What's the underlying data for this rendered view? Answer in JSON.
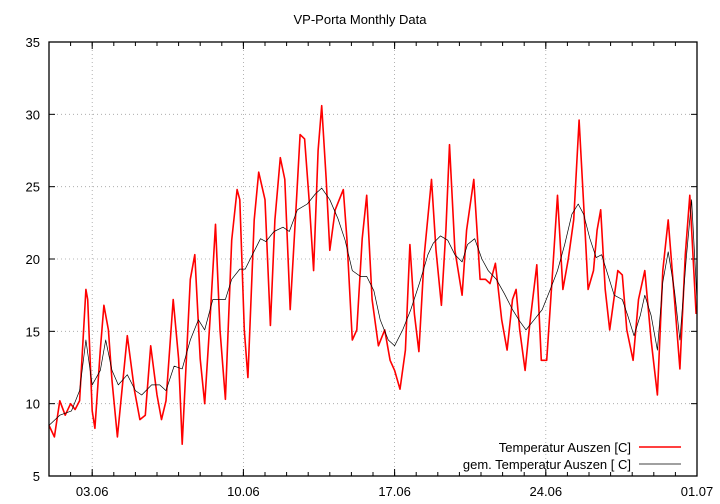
{
  "chart_data": {
    "type": "line",
    "title": "VP-Porta Monthly Data",
    "xlabel": "",
    "ylabel": "",
    "xlim": [
      "01.06 00:00",
      "01.07 00:00"
    ],
    "ylim": [
      5,
      35
    ],
    "x_ticks": [
      "03.06",
      "10.06",
      "17.06",
      "24.06",
      "01.07"
    ],
    "y_ticks": [
      5,
      10,
      15,
      20,
      25,
      30,
      35
    ],
    "grid": true,
    "legend_position": "bottom-right",
    "series": [
      {
        "name": "Temperatur Auszen [C]",
        "color": "#ff0000",
        "points": [
          [
            "01.06 00:00",
            8.5
          ],
          [
            "01.06 06:00",
            7.7
          ],
          [
            "01.06 12:00",
            10.2
          ],
          [
            "01.06 18:00",
            9.2
          ],
          [
            "02.06 00:00",
            10.0
          ],
          [
            "02.06 05:00",
            9.6
          ],
          [
            "02.06 10:00",
            10.2
          ],
          [
            "02.06 17:00",
            17.9
          ],
          [
            "02.06 19:00",
            17.2
          ],
          [
            "03.06 00:00",
            9.5
          ],
          [
            "03.06 03:00",
            8.3
          ],
          [
            "03.06 09:00",
            13.7
          ],
          [
            "03.06 13:00",
            16.8
          ],
          [
            "03.06 18:00",
            15.1
          ],
          [
            "03.06 22:00",
            11.6
          ],
          [
            "04.06 04:00",
            7.7
          ],
          [
            "04.06 15:00",
            14.7
          ],
          [
            "04.06 23:00",
            10.9
          ],
          [
            "05.06 05:00",
            8.9
          ],
          [
            "05.06 11:00",
            9.2
          ],
          [
            "05.06 17:00",
            14.0
          ],
          [
            "06.06 00:00",
            10.6
          ],
          [
            "06.06 05:00",
            8.9
          ],
          [
            "06.06 10:00",
            10.2
          ],
          [
            "06.06 18:00",
            17.2
          ],
          [
            "07.06 00:00",
            13.1
          ],
          [
            "07.06 04:00",
            7.2
          ],
          [
            "07.06 13:00",
            18.6
          ],
          [
            "07.06 18:00",
            20.3
          ],
          [
            "08.06 00:00",
            13.1
          ],
          [
            "08.06 05:00",
            10.0
          ],
          [
            "08.06 11:00",
            15.9
          ],
          [
            "08.06 17:00",
            22.4
          ],
          [
            "08.06 22:00",
            15.1
          ],
          [
            "09.06 04:00",
            10.3
          ],
          [
            "09.06 11:00",
            21.3
          ],
          [
            "09.06 17:00",
            24.8
          ],
          [
            "09.06 20:00",
            24.1
          ],
          [
            "10.06 01:00",
            15.1
          ],
          [
            "10.06 05:00",
            11.8
          ],
          [
            "10.06 12:00",
            22.7
          ],
          [
            "10.06 17:00",
            26.0
          ],
          [
            "11.06 00:00",
            24.1
          ],
          [
            "11.06 06:00",
            15.4
          ],
          [
            "11.06 11:00",
            22.7
          ],
          [
            "11.06 17:00",
            27.0
          ],
          [
            "11.06 22:00",
            25.5
          ],
          [
            "12.06 04:00",
            16.5
          ],
          [
            "12.06 11:00",
            24.1
          ],
          [
            "12.06 15:00",
            28.6
          ],
          [
            "12.06 20:00",
            28.3
          ],
          [
            "13.06 01:00",
            24.1
          ],
          [
            "13.06 06:00",
            19.2
          ],
          [
            "13.06 11:00",
            27.5
          ],
          [
            "13.06 15:00",
            30.6
          ],
          [
            "13.06 20:00",
            25.5
          ],
          [
            "14.06 00:00",
            20.6
          ],
          [
            "14.06 06:00",
            23.4
          ],
          [
            "14.06 15:00",
            24.8
          ],
          [
            "14.06 19:00",
            21.4
          ],
          [
            "15.06 01:00",
            14.4
          ],
          [
            "15.06 06:00",
            15.1
          ],
          [
            "15.06 12:00",
            21.4
          ],
          [
            "15.06 17:00",
            24.4
          ],
          [
            "15.06 23:00",
            17.2
          ],
          [
            "16.06 06:00",
            14.0
          ],
          [
            "16.06 13:00",
            15.1
          ],
          [
            "16.06 19:00",
            13.0
          ],
          [
            "17.06 00:00",
            12.3
          ],
          [
            "17.06 06:00",
            11.0
          ],
          [
            "17.06 12:00",
            13.7
          ],
          [
            "17.06 17:00",
            21.0
          ],
          [
            "17.06 22:00",
            16.2
          ],
          [
            "18.06 03:00",
            13.6
          ],
          [
            "18.06 09:00",
            20.3
          ],
          [
            "18.06 17:00",
            25.5
          ],
          [
            "18.06 22:00",
            20.6
          ],
          [
            "19.06 04:00",
            16.8
          ],
          [
            "19.06 09:00",
            22.0
          ],
          [
            "19.06 13:00",
            27.9
          ],
          [
            "19.06 19:00",
            20.6
          ],
          [
            "20.06 03:00",
            17.5
          ],
          [
            "20.06 08:00",
            22.0
          ],
          [
            "20.06 16:00",
            25.5
          ],
          [
            "20.06 23:00",
            18.6
          ],
          [
            "21.06 05:00",
            18.6
          ],
          [
            "21.06 10:00",
            18.3
          ],
          [
            "21.06 16:00",
            19.7
          ],
          [
            "21.06 23:00",
            15.8
          ],
          [
            "22.06 05:00",
            13.7
          ],
          [
            "22.06 11:00",
            17.2
          ],
          [
            "22.06 15:00",
            17.9
          ],
          [
            "22.06 19:00",
            15.1
          ],
          [
            "23.06 01:00",
            12.3
          ],
          [
            "23.06 06:00",
            15.4
          ],
          [
            "23.06 14:00",
            19.6
          ],
          [
            "23.06 19:00",
            13.0
          ],
          [
            "24.06 01:00",
            13.0
          ],
          [
            "24.06 07:00",
            18.6
          ],
          [
            "24.06 13:00",
            24.4
          ],
          [
            "24.06 19:00",
            17.9
          ],
          [
            "25.06 01:00",
            20.0
          ],
          [
            "25.06 07:00",
            22.7
          ],
          [
            "25.06 13:00",
            29.6
          ],
          [
            "25.06 19:00",
            22.7
          ],
          [
            "25.06 23:00",
            17.9
          ],
          [
            "26.06 05:00",
            19.2
          ],
          [
            "26.06 09:00",
            22.0
          ],
          [
            "26.06 13:00",
            23.4
          ],
          [
            "26.06 18:00",
            17.9
          ],
          [
            "26.06 23:00",
            15.1
          ],
          [
            "27.06 08:00",
            19.2
          ],
          [
            "27.06 13:00",
            18.9
          ],
          [
            "27.06 18:00",
            15.1
          ],
          [
            "28.06 01:00",
            13.0
          ],
          [
            "28.06 07:00",
            17.2
          ],
          [
            "28.06 14:00",
            19.2
          ],
          [
            "28.06 21:00",
            14.4
          ],
          [
            "29.06 04:00",
            10.6
          ],
          [
            "29.06 10:00",
            19.2
          ],
          [
            "29.06 16:00",
            22.7
          ],
          [
            "29.06 23:00",
            17.2
          ],
          [
            "30.06 05:00",
            12.4
          ],
          [
            "30.06 11:00",
            20.3
          ],
          [
            "30.06 16:00",
            24.4
          ],
          [
            "30.06 23:00",
            16.2
          ]
        ]
      },
      {
        "name": "gem. Temperatur Auszen [ C]",
        "color": "#000000",
        "points": [
          [
            "01.06 00:00",
            8.5
          ],
          [
            "01.06 12:00",
            9.2
          ],
          [
            "02.06 01:00",
            9.5
          ],
          [
            "02.06 10:00",
            10.9
          ],
          [
            "02.06 17:00",
            14.4
          ],
          [
            "03.06 00:00",
            11.3
          ],
          [
            "03.06 09:00",
            12.3
          ],
          [
            "03.06 15:00",
            14.4
          ],
          [
            "03.06 22:00",
            12.3
          ],
          [
            "04.06 05:00",
            11.3
          ],
          [
            "04.06 15:00",
            12.0
          ],
          [
            "05.06 00:00",
            10.9
          ],
          [
            "05.06 07:00",
            10.6
          ],
          [
            "05.06 18:00",
            11.3
          ],
          [
            "06.06 03:00",
            11.3
          ],
          [
            "06.06 10:00",
            10.9
          ],
          [
            "06.06 19:00",
            12.6
          ],
          [
            "07.06 04:00",
            12.4
          ],
          [
            "07.06 13:00",
            14.4
          ],
          [
            "07.06 22:00",
            15.8
          ],
          [
            "08.06 05:00",
            15.1
          ],
          [
            "08.06 14:00",
            17.2
          ],
          [
            "09.06 04:00",
            17.2
          ],
          [
            "09.06 11:00",
            18.6
          ],
          [
            "09.06 20:00",
            19.3
          ],
          [
            "10.06 02:00",
            19.3
          ],
          [
            "10.06 10:00",
            20.3
          ],
          [
            "10.06 19:00",
            21.4
          ],
          [
            "11.06 01:00",
            21.2
          ],
          [
            "11.06 10:00",
            21.9
          ],
          [
            "11.06 20:00",
            22.2
          ],
          [
            "12.06 03:00",
            21.9
          ],
          [
            "12.06 12:00",
            23.4
          ],
          [
            "12.06 23:00",
            23.8
          ],
          [
            "13.06 08:00",
            24.5
          ],
          [
            "13.06 15:00",
            24.9
          ],
          [
            "14.06 00:00",
            24.1
          ],
          [
            "14.06 09:00",
            22.8
          ],
          [
            "14.06 17:00",
            21.3
          ],
          [
            "15.06 01:00",
            19.2
          ],
          [
            "15.06 10:00",
            18.8
          ],
          [
            "15.06 17:00",
            18.8
          ],
          [
            "16.06 01:00",
            17.8
          ],
          [
            "16.06 08:00",
            15.8
          ],
          [
            "16.06 17:00",
            14.4
          ],
          [
            "17.06 00:00",
            14.0
          ],
          [
            "17.06 09:00",
            15.1
          ],
          [
            "17.06 18:00",
            16.5
          ],
          [
            "18.06 04:00",
            18.4
          ],
          [
            "18.06 13:00",
            20.3
          ],
          [
            "18.06 19:00",
            21.1
          ],
          [
            "19.06 03:00",
            21.6
          ],
          [
            "19.06 11:00",
            21.3
          ],
          [
            "19.06 19:00",
            20.3
          ],
          [
            "20.06 03:00",
            19.8
          ],
          [
            "20.06 09:00",
            21.0
          ],
          [
            "20.06 17:00",
            21.4
          ],
          [
            "21.06 01:00",
            20.0
          ],
          [
            "21.06 08:00",
            19.2
          ],
          [
            "21.06 17:00",
            18.6
          ],
          [
            "22.06 02:00",
            17.6
          ],
          [
            "22.06 11:00",
            16.5
          ],
          [
            "22.06 19:00",
            15.7
          ],
          [
            "23.06 02:00",
            15.1
          ],
          [
            "23.06 11:00",
            15.8
          ],
          [
            "23.06 20:00",
            16.5
          ],
          [
            "24.06 05:00",
            17.9
          ],
          [
            "24.06 13:00",
            19.2
          ],
          [
            "24.06 21:00",
            21.0
          ],
          [
            "25.06 05:00",
            23.1
          ],
          [
            "25.06 12:00",
            23.8
          ],
          [
            "25.06 18:00",
            23.1
          ],
          [
            "26.06 01:00",
            21.4
          ],
          [
            "26.06 08:00",
            20.1
          ],
          [
            "26.06 14:00",
            20.3
          ],
          [
            "26.06 21:00",
            18.9
          ],
          [
            "27.06 04:00",
            17.5
          ],
          [
            "27.06 13:00",
            17.2
          ],
          [
            "27.06 19:00",
            16.1
          ],
          [
            "28.06 02:00",
            14.7
          ],
          [
            "28.06 09:00",
            16.1
          ],
          [
            "28.06 14:00",
            17.5
          ],
          [
            "28.06 21:00",
            16.1
          ],
          [
            "29.06 04:00",
            13.7
          ],
          [
            "29.06 10:00",
            18.4
          ],
          [
            "29.06 16:00",
            20.5
          ],
          [
            "29.06 23:00",
            17.8
          ],
          [
            "30.06 05:00",
            14.4
          ],
          [
            "30.06 12:00",
            20.0
          ],
          [
            "30.06 18:00",
            24.1
          ],
          [
            "01.07 00:00",
            17.2
          ]
        ]
      }
    ]
  }
}
